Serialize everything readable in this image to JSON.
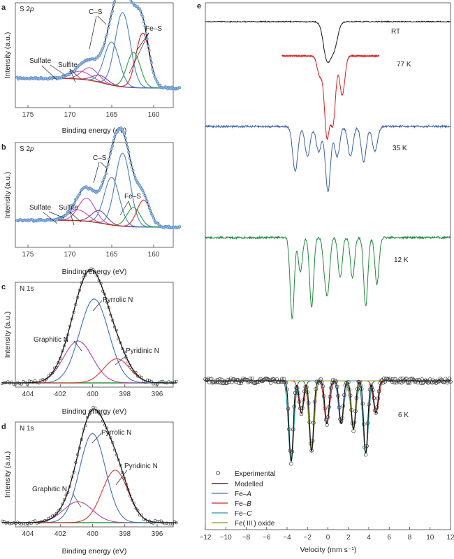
{
  "panels": {
    "a": {
      "letter": "a",
      "title_main": "S 2",
      "title_italic": "p",
      "xticks": [
        "175",
        "170",
        "165",
        "160"
      ],
      "xlabel": "Binding energy (eV)",
      "ylabel": "Intensity (a.u.)",
      "labels": {
        "cs": "C–S",
        "fes": "Fe–S",
        "sulfate": "Sulfate",
        "sulfite": "Sulfite"
      }
    },
    "b": {
      "letter": "b",
      "title_main": "S 2",
      "title_italic": "p",
      "xticks": [
        "175",
        "170",
        "165",
        "160"
      ],
      "xlabel": "Binding energy (eV)",
      "ylabel": "Intensity (a.u.)",
      "labels": {
        "cs": "C–S",
        "fes": "Fe–S",
        "sulfate": "Sulfate",
        "sulfite": "Sulfite"
      }
    },
    "c": {
      "letter": "c",
      "title": "N 1s",
      "xticks": [
        "404",
        "402",
        "400",
        "398",
        "396"
      ],
      "xlabel": "Binding energy (eV)",
      "ylabel": "Intensity (a.u.)",
      "labels": {
        "pyrrolic": "Pyrrolic N",
        "graphitic": "Graphitic N",
        "pyridinic": "Pyridinic N"
      }
    },
    "d": {
      "letter": "d",
      "title": "N 1s",
      "xticks": [
        "404",
        "402",
        "400",
        "398",
        "396"
      ],
      "xlabel": "Binding energy (eV)",
      "ylabel": "Intensity (a.u.)",
      "labels": {
        "pyrrolic": "Pyrrolic N",
        "graphitic": "Graphitic N",
        "pyridinic": "Pyridinic N"
      }
    },
    "e": {
      "letter": "e",
      "xticks": [
        "−12",
        "−10",
        "−8",
        "−6",
        "−4",
        "−2",
        "0",
        "2",
        "4",
        "6",
        "8",
        "10",
        "12"
      ],
      "xlabel": "Velocity (mm s⁻¹)",
      "temps": [
        "RT",
        "77 K",
        "35 K",
        "12 K",
        "6 K"
      ],
      "legend": {
        "experimental": "Experimental",
        "modelled": "Modelled",
        "fea": "Fe–",
        "fea_i": "A",
        "feb": "Fe–",
        "feb_i": "B",
        "fec": "Fe–",
        "fec_i": "C",
        "oxide": "Fe( III ) oxide"
      }
    }
  },
  "colors": {
    "data": "#4a7fc0",
    "envelope": "#111111",
    "sulfate": "#c04fb0",
    "sulfite": "#7a3fa0",
    "fes": "#e02020",
    "fes2": "#2a9a3a",
    "graphitic": "#b040a0",
    "pyridinic": "#e03030",
    "pyrrolic": "#3a6fc0",
    "baseline": "#2a9a3a",
    "rt": "#111111",
    "k77": "#e01a1a",
    "k35": "#3c5fa8",
    "k12": "#1e8a3a",
    "fec": "#1e9a9a",
    "oxide": "#8a9a20"
  },
  "chart_data": [
    {
      "type": "line",
      "panel": "a",
      "title": "S 2p",
      "xlabel": "Binding energy (eV)",
      "ylabel": "Intensity (a.u.)",
      "xlim": [
        176,
        157
      ],
      "peaks": [
        {
          "name": "Sulfate",
          "center": 168.7,
          "height": 0.1,
          "width": 1.2
        },
        {
          "name": "Sulfate",
          "center": 167.6,
          "height": 0.16,
          "width": 1.0
        },
        {
          "name": "Sulfite",
          "center": 166.4,
          "height": 0.09,
          "width": 0.9
        },
        {
          "name": "C–S",
          "center": 165.0,
          "height": 0.55,
          "width": 0.9
        },
        {
          "name": "C–S",
          "center": 163.7,
          "height": 0.95,
          "width": 0.9
        },
        {
          "name": "Fe–S",
          "center": 162.4,
          "height": 0.45,
          "width": 0.8
        },
        {
          "name": "Fe–S",
          "center": 161.3,
          "height": 0.7,
          "width": 0.8
        }
      ]
    },
    {
      "type": "line",
      "panel": "b",
      "title": "S 2p",
      "xlabel": "Binding energy (eV)",
      "ylabel": "Intensity (a.u.)",
      "xlim": [
        176,
        157
      ],
      "peaks": [
        {
          "name": "Sulfate",
          "center": 169.0,
          "height": 0.14,
          "width": 1.1
        },
        {
          "name": "Sulfate",
          "center": 168.0,
          "height": 0.3,
          "width": 1.0
        },
        {
          "name": "Sulfite",
          "center": 166.5,
          "height": 0.16,
          "width": 0.9
        },
        {
          "name": "C–S",
          "center": 165.0,
          "height": 0.62,
          "width": 0.9
        },
        {
          "name": "C–S",
          "center": 163.7,
          "height": 0.95,
          "width": 0.9
        },
        {
          "name": "Fe–S",
          "center": 162.4,
          "height": 0.25,
          "width": 0.8
        },
        {
          "name": "Fe–S",
          "center": 161.2,
          "height": 0.35,
          "width": 0.8
        }
      ]
    },
    {
      "type": "line",
      "panel": "c",
      "title": "N 1s",
      "xlabel": "Binding energy (eV)",
      "ylabel": "Intensity (a.u.)",
      "xlim": [
        405,
        395
      ],
      "peaks": [
        {
          "name": "Graphitic N",
          "center": 400.9,
          "height": 0.4,
          "width": 0.9
        },
        {
          "name": "Pyrrolic N",
          "center": 399.9,
          "height": 0.8,
          "width": 0.9
        },
        {
          "name": "Pyridinic N",
          "center": 398.5,
          "height": 0.23,
          "width": 0.8
        }
      ]
    },
    {
      "type": "line",
      "panel": "d",
      "title": "N 1s",
      "xlabel": "Binding energy (eV)",
      "ylabel": "Intensity (a.u.)",
      "xlim": [
        405,
        395
      ],
      "peaks": [
        {
          "name": "Graphitic N",
          "center": 400.9,
          "height": 0.2,
          "width": 0.9
        },
        {
          "name": "Pyrrolic N",
          "center": 400.0,
          "height": 0.85,
          "width": 0.8
        },
        {
          "name": "Pyridinic N",
          "center": 398.6,
          "height": 0.5,
          "width": 0.8
        }
      ]
    },
    {
      "type": "line",
      "panel": "e",
      "xlabel": "Velocity (mm s⁻¹)",
      "xlim": [
        -12,
        12
      ],
      "series": [
        {
          "name": "RT",
          "peaks": [
            {
              "v": -0.1,
              "d": 1.0
            },
            {
              "v": 0.6,
              "d": 0.7
            }
          ],
          "width": 0.35
        },
        {
          "name": "77 K",
          "vrange": [
            -4.5,
            5
          ],
          "peaks": [
            {
              "v": -0.1,
              "d": 1.2
            },
            {
              "v": 0.5,
              "d": 1.0
            },
            {
              "v": 1.4,
              "d": 0.6
            },
            {
              "v": -0.8,
              "d": 0.3
            }
          ],
          "width": 0.25
        },
        {
          "name": "35 K",
          "peaks": [
            {
              "v": -3.2,
              "d": 0.9
            },
            {
              "v": -2.0,
              "d": 0.6
            },
            {
              "v": -0.9,
              "d": 0.5
            },
            {
              "v": 0.0,
              "d": 1.3
            },
            {
              "v": 0.9,
              "d": 0.6
            },
            {
              "v": 2.2,
              "d": 0.6
            },
            {
              "v": 3.5,
              "d": 0.7
            },
            {
              "v": 4.6,
              "d": 0.5
            }
          ],
          "width": 0.25
        },
        {
          "name": "12 K",
          "peaks": [
            {
              "v": -3.5,
              "d": 1.4
            },
            {
              "v": -2.7,
              "d": 0.6
            },
            {
              "v": -1.6,
              "d": 1.2
            },
            {
              "v": -0.3,
              "d": 0.5
            },
            {
              "v": 0.0,
              "d": 0.8
            },
            {
              "v": 1.2,
              "d": 0.7
            },
            {
              "v": 2.4,
              "d": 0.7
            },
            {
              "v": 3.7,
              "d": 1.2
            },
            {
              "v": 4.8,
              "d": 0.8
            }
          ],
          "width": 0.2
        },
        {
          "name": "6 K",
          "peaks": [
            {
              "v": -3.6,
              "d": 1.5
            },
            {
              "v": -2.6,
              "d": 0.6
            },
            {
              "v": -1.6,
              "d": 1.3
            },
            {
              "v": -0.1,
              "d": 0.8
            },
            {
              "v": 1.3,
              "d": 0.8
            },
            {
              "v": 2.5,
              "d": 0.9
            },
            {
              "v": 3.7,
              "d": 1.35
            },
            {
              "v": 4.7,
              "d": 0.6
            }
          ],
          "width": 0.2
        }
      ]
    }
  ]
}
